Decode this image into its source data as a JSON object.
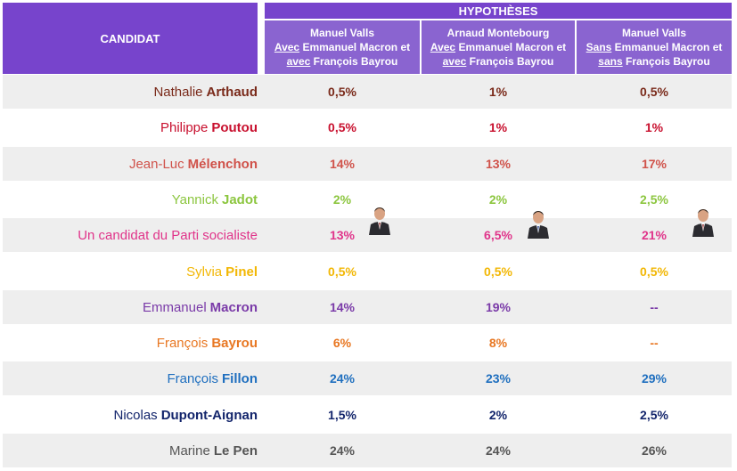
{
  "header": {
    "candidat": "CANDIDAT",
    "hypotheses": "HYPOTHÈSES",
    "columns": [
      {
        "line1": "Manuel Valls",
        "l2a": "Avec",
        "l2b": " Emmanuel Macron et",
        "l3a": "avec",
        "l3b": " François Bayrou"
      },
      {
        "line1": "Arnaud Montebourg",
        "l2a": "Avec",
        "l2b": " Emmanuel Macron et",
        "l3a": "avec",
        "l3b": " François Bayrou"
      },
      {
        "line1": "Manuel Valls",
        "l2a": "Sans",
        "l2b": " Emmanuel Macron et",
        "l3a": "sans",
        "l3b": " François Bayrou"
      }
    ]
  },
  "rows": [
    {
      "first": "Nathalie",
      "last": "Arthaud",
      "color": "#7a2a1a",
      "v": [
        "0,5%",
        "1%",
        "0,5%"
      ]
    },
    {
      "first": "Philippe",
      "last": "Poutou",
      "color": "#c8102e",
      "v": [
        "0,5%",
        "1%",
        "1%"
      ]
    },
    {
      "first": "Jean-Luc",
      "last": "Mélenchon",
      "color": "#d0524a",
      "v": [
        "14%",
        "13%",
        "17%"
      ]
    },
    {
      "first": "Yannick",
      "last": "Jadot",
      "color": "#8cc63f",
      "v": [
        "2%",
        "2%",
        "2,5%"
      ]
    },
    {
      "first": "Un candidat du Parti socialiste",
      "last": "",
      "color": "#e0348a",
      "v": [
        "13%",
        "6,5%",
        "21%"
      ]
    },
    {
      "first": "Sylvia",
      "last": "Pinel",
      "color": "#f2b705",
      "v": [
        "0,5%",
        "0,5%",
        "0,5%"
      ]
    },
    {
      "first": "Emmanuel",
      "last": "Macron",
      "color": "#7a3aa8",
      "v": [
        "14%",
        "19%",
        "--"
      ]
    },
    {
      "first": "François",
      "last": "Bayrou",
      "color": "#e87722",
      "v": [
        "6%",
        "8%",
        "--"
      ]
    },
    {
      "first": "François",
      "last": "Fillon",
      "color": "#1f6fbf",
      "v": [
        "24%",
        "23%",
        "29%"
      ]
    },
    {
      "first": "Nicolas",
      "last": "Dupont-Aignan",
      "color": "#12246b",
      "v": [
        "1,5%",
        "2%",
        "2,5%"
      ]
    },
    {
      "first": "Marine",
      "last": "Le Pen",
      "color": "#555555",
      "v": [
        "24%",
        "24%",
        "26%"
      ]
    }
  ],
  "chart_data": {
    "type": "table",
    "columns": [
      "Manuel Valls Avec Emmanuel Macron et avec François Bayrou",
      "Arnaud Montebourg Avec Emmanuel Macron et avec François Bayrou",
      "Manuel Valls Sans Emmanuel Macron et sans François Bayrou"
    ],
    "rows": [
      "Nathalie Arthaud",
      "Philippe Poutou",
      "Jean-Luc Mélenchon",
      "Yannick Jadot",
      "Un candidat du Parti socialiste",
      "Sylvia Pinel",
      "Emmanuel Macron",
      "François Bayrou",
      "François Fillon",
      "Nicolas Dupont-Aignan",
      "Marine Le Pen"
    ],
    "values": [
      [
        0.5,
        1,
        0.5
      ],
      [
        0.5,
        1,
        1
      ],
      [
        14,
        13,
        17
      ],
      [
        2,
        2,
        2.5
      ],
      [
        13,
        6.5,
        21
      ],
      [
        0.5,
        0.5,
        0.5
      ],
      [
        14,
        19,
        null
      ],
      [
        6,
        8,
        null
      ],
      [
        24,
        23,
        29
      ],
      [
        1.5,
        2,
        2.5
      ],
      [
        24,
        24,
        26
      ]
    ]
  }
}
